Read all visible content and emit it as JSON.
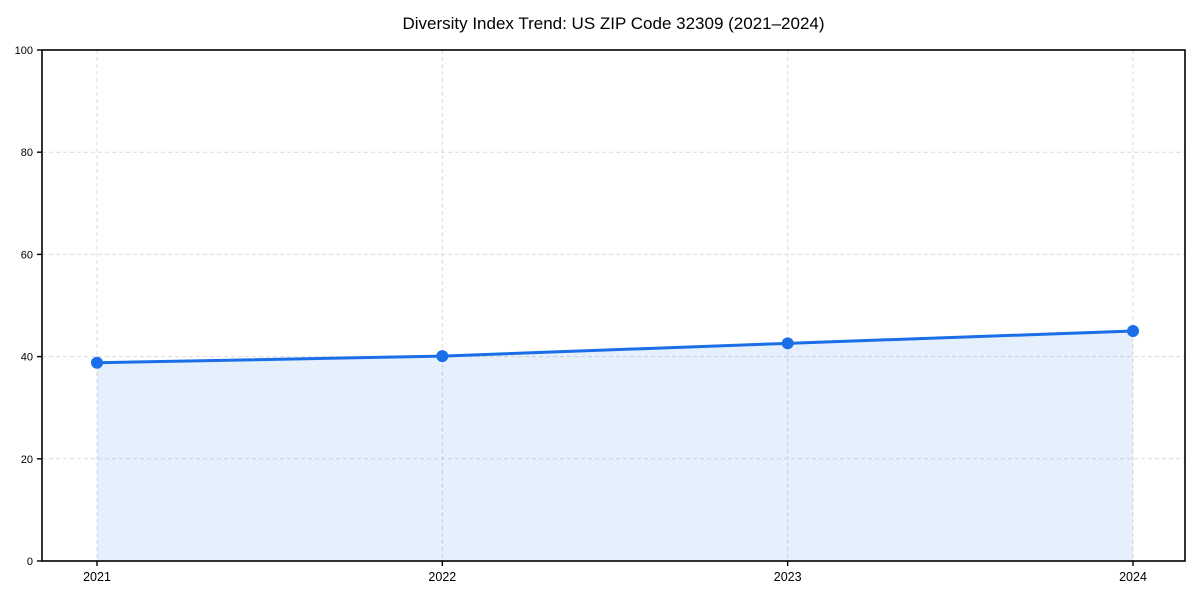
{
  "chart_data": {
    "type": "area",
    "title": "Diversity Index Trend: US ZIP Code 32309 (2021–2024)",
    "x": [
      "2021",
      "2022",
      "2023",
      "2024"
    ],
    "series": [
      {
        "name": "Diversity Index",
        "values": [
          38.8,
          40.1,
          42.6,
          45.0
        ]
      }
    ],
    "xlabel": "",
    "ylabel": "",
    "ylim": [
      0,
      100
    ],
    "yticks": [
      0,
      20,
      40,
      60,
      80,
      100
    ],
    "grid": {
      "show": true,
      "style": "dashed",
      "color": "#dcdcdc"
    },
    "line_color": "#1a6ee8",
    "marker_color": "#1a6ee8",
    "fill_color": "#1a6ee8",
    "fill_opacity": 0.11,
    "axis_color": "#000000",
    "text_color": "#000000",
    "background": "#ffffff"
  }
}
